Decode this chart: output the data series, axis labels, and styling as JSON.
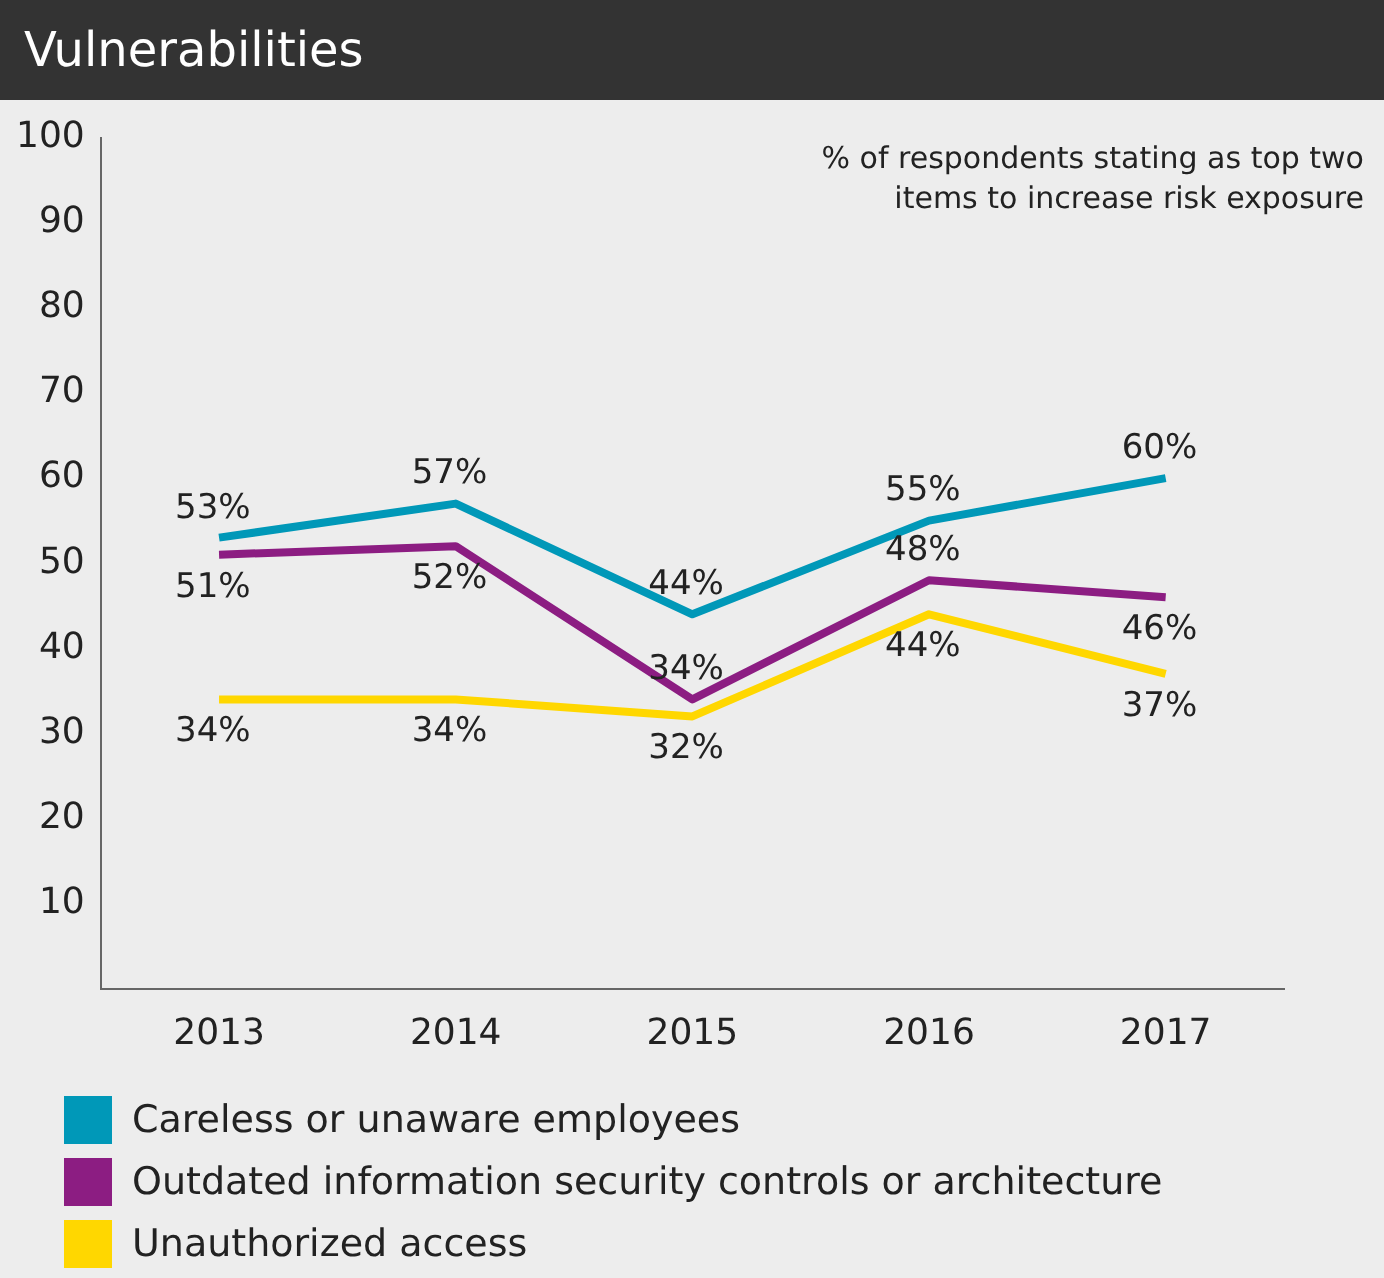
{
  "chart_data": {
    "type": "line",
    "title": "Vulnerabilities",
    "annotations": [
      "% of respondents stating as top two\nitems to increase risk exposure"
    ],
    "categories": [
      "2013",
      "2014",
      "2015",
      "2016",
      "2017"
    ],
    "series": [
      {
        "name": "Careless or unaware employees",
        "color": "#0098b8",
        "values": [
          53,
          57,
          44,
          55,
          60
        ],
        "value_labels": [
          "53%",
          "57%",
          "44%",
          "55%",
          "60%"
        ]
      },
      {
        "name": "Outdated information security controls or architecture",
        "color": "#8c1d82",
        "values": [
          51,
          52,
          34,
          48,
          46
        ],
        "value_labels": [
          "51%",
          "52%",
          "34%",
          "48%",
          "46%"
        ]
      },
      {
        "name": "Unauthorized access",
        "color": "#ffd700",
        "values": [
          34,
          34,
          32,
          44,
          37
        ],
        "value_labels": [
          "34%",
          "34%",
          "32%",
          "44%",
          "37%"
        ]
      }
    ],
    "ylim": [
      0,
      100
    ],
    "yticks": [
      10,
      20,
      30,
      40,
      50,
      60,
      70,
      80,
      90,
      100
    ],
    "grid": false,
    "legend": "bottom",
    "marker": "none",
    "line_style": "solid"
  }
}
